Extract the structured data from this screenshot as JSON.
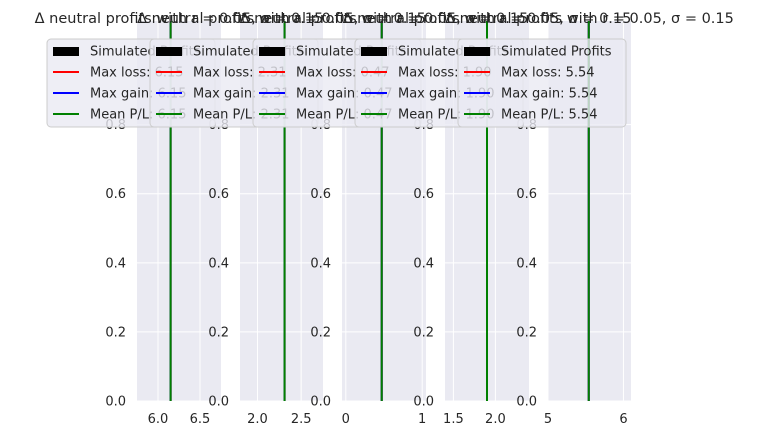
{
  "chart_data": [
    {
      "type": "histogram",
      "title": "Δ neutral profits with r = 0.05, σ = 0.15",
      "xlim": [
        5.75,
        6.75
      ],
      "ylim": [
        0,
        1.1
      ],
      "xticks": [
        {
          "v": 6.0,
          "label": "6.0"
        },
        {
          "v": 6.5,
          "label": "6.5"
        }
      ],
      "yticks": [
        {
          "v": 0.0,
          "label": "0.0"
        },
        {
          "v": 0.2,
          "label": "0.2"
        },
        {
          "v": 0.4,
          "label": "0.4"
        },
        {
          "v": 0.6,
          "label": "0.6"
        },
        {
          "v": 0.8,
          "label": "0.8"
        }
      ],
      "series": [
        {
          "name": "Simulated Profits",
          "color": "#000000",
          "kind": "bar"
        },
        {
          "name": "Max loss: 6.15",
          "value": 6.15,
          "color": "#ff0000",
          "kind": "vline"
        },
        {
          "name": "Max gain: 6.15",
          "value": 6.15,
          "color": "#0000ff",
          "kind": "vline"
        },
        {
          "name": "Mean P/L: 6.15",
          "value": 6.15,
          "color": "#008000",
          "kind": "vline"
        }
      ]
    },
    {
      "type": "histogram",
      "title": "Δ neutral profits with r = 0.05, σ = 0.15",
      "xlim": [
        1.8,
        2.75
      ],
      "ylim": [
        0,
        1.1
      ],
      "xticks": [
        {
          "v": 2.0,
          "label": "2.0"
        },
        {
          "v": 2.5,
          "label": "2.5"
        }
      ],
      "yticks": [
        {
          "v": 0.0,
          "label": "0.0"
        },
        {
          "v": 0.2,
          "label": "0.2"
        },
        {
          "v": 0.4,
          "label": "0.4"
        },
        {
          "v": 0.6,
          "label": "0.6"
        },
        {
          "v": 0.8,
          "label": "0.8"
        }
      ],
      "series": [
        {
          "name": "Simulated Profits",
          "color": "#000000",
          "kind": "bar"
        },
        {
          "name": "Max loss: 2.31",
          "value": 2.31,
          "color": "#ff0000",
          "kind": "vline"
        },
        {
          "name": "Max gain: 2.31",
          "value": 2.31,
          "color": "#0000ff",
          "kind": "vline"
        },
        {
          "name": "Mean P/L: 2.31",
          "value": 2.31,
          "color": "#008000",
          "kind": "vline"
        }
      ]
    },
    {
      "type": "histogram",
      "title": "Δ neutral profits with r = 0.05, σ = 0.15",
      "xlim": [
        -0.05,
        1.05
      ],
      "ylim": [
        0,
        1.1
      ],
      "xticks": [
        {
          "v": 0,
          "label": "0"
        },
        {
          "v": 1,
          "label": "1"
        }
      ],
      "yticks": [
        {
          "v": 0.0,
          "label": "0.0"
        },
        {
          "v": 0.2,
          "label": "0.2"
        },
        {
          "v": 0.4,
          "label": "0.4"
        },
        {
          "v": 0.6,
          "label": "0.6"
        },
        {
          "v": 0.8,
          "label": "0.8"
        }
      ],
      "series": [
        {
          "name": "Simulated Profits",
          "color": "#000000",
          "kind": "bar"
        },
        {
          "name": "Max loss: 0.47",
          "value": 0.47,
          "color": "#ff0000",
          "kind": "vline"
        },
        {
          "name": "Max gain: 0.47",
          "value": 0.47,
          "color": "#0000ff",
          "kind": "vline"
        },
        {
          "name": "Mean P/L: 0.47",
          "value": 0.47,
          "color": "#008000",
          "kind": "vline"
        }
      ]
    },
    {
      "type": "histogram",
      "title": "Δ neutral profits with r = 0.05, σ = 0.15",
      "xlim": [
        1.4,
        2.4
      ],
      "ylim": [
        0,
        1.1
      ],
      "xticks": [
        {
          "v": 1.5,
          "label": "1.5"
        },
        {
          "v": 2.0,
          "label": "2.0"
        }
      ],
      "yticks": [
        {
          "v": 0.0,
          "label": "0.0"
        },
        {
          "v": 0.2,
          "label": "0.2"
        },
        {
          "v": 0.4,
          "label": "0.4"
        },
        {
          "v": 0.6,
          "label": "0.6"
        },
        {
          "v": 0.8,
          "label": "0.8"
        }
      ],
      "series": [
        {
          "name": "Simulated Profits",
          "color": "#000000",
          "kind": "bar"
        },
        {
          "name": "Max loss: 1.90",
          "value": 1.9,
          "color": "#ff0000",
          "kind": "vline"
        },
        {
          "name": "Max gain: 1.90",
          "value": 1.9,
          "color": "#0000ff",
          "kind": "vline"
        },
        {
          "name": "Mean P/L: 1.90",
          "value": 1.9,
          "color": "#008000",
          "kind": "vline"
        }
      ]
    },
    {
      "type": "histogram",
      "title": "Δ neutral profits with r = 0.05, σ = 0.15",
      "xlim": [
        5.0,
        6.1
      ],
      "ylim": [
        0,
        1.1
      ],
      "xticks": [
        {
          "v": 5,
          "label": "5"
        },
        {
          "v": 6,
          "label": "6"
        }
      ],
      "yticks": [
        {
          "v": 0.0,
          "label": "0.0"
        },
        {
          "v": 0.2,
          "label": "0.2"
        },
        {
          "v": 0.4,
          "label": "0.4"
        },
        {
          "v": 0.6,
          "label": "0.6"
        },
        {
          "v": 0.8,
          "label": "0.8"
        }
      ],
      "series": [
        {
          "name": "Simulated Profits",
          "color": "#000000",
          "kind": "bar"
        },
        {
          "name": "Max loss: 5.54",
          "value": 5.54,
          "color": "#ff0000",
          "kind": "vline"
        },
        {
          "name": "Max gain: 5.54",
          "value": 5.54,
          "color": "#0000ff",
          "kind": "vline"
        },
        {
          "name": "Mean P/L: 5.54",
          "value": 5.54,
          "color": "#008000",
          "kind": "vline"
        }
      ]
    }
  ]
}
